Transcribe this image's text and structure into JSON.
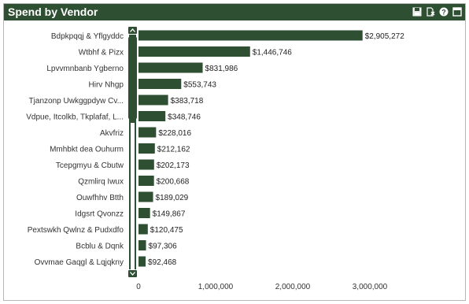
{
  "header": {
    "title": "Spend by Vendor",
    "icons": [
      "save-icon",
      "clear-selection-icon",
      "help-icon",
      "maximize-icon"
    ]
  },
  "chart_data": {
    "type": "bar",
    "orientation": "horizontal",
    "title": "Spend by Vendor",
    "categories": [
      "Bdpkpqqj & Yflgyddc",
      "Wtbhf & Pizx",
      "Lpvvmnbanb Ygberno",
      "Hirv Nhgp",
      "Tjanzonp Uwkggpdyw Cv...",
      "Vdpue, Itcolkb, Tkplafaf, L...",
      "Akvfriz",
      "Mmhbkt dea Ouhurm",
      "Tcepgmyu & Cbutw",
      "Qzmlirq Iwux",
      "Ouwfhhv Btth",
      "Idgsrt Qvonzz",
      "Pextswkh Qwlnz & Pudxdfo",
      "Bcblu & Dqnk",
      "Ovvmae Gaqgl & Lqjqkny"
    ],
    "values": [
      2905272,
      1446746,
      831986,
      553743,
      383718,
      348746,
      228016,
      212162,
      202173,
      200668,
      189029,
      149867,
      120475,
      97306,
      92468
    ],
    "value_labels": [
      "$2,905,272",
      "$1,446,746",
      "$831,986",
      "$553,743",
      "$383,718",
      "$348,746",
      "$228,016",
      "$212,162",
      "$202,173",
      "$200,668",
      "$189,029",
      "$149,867",
      "$120,475",
      "$97,306",
      "$92,468"
    ],
    "xticks": [
      0,
      1000000,
      2000000,
      3000000
    ],
    "xtick_labels": [
      "0",
      "1,000,000",
      "2,000,000",
      "3,000,000"
    ],
    "xlim": [
      0,
      3400000
    ],
    "bar_color": "#2f4f33",
    "grid": false,
    "legend": "none"
  }
}
